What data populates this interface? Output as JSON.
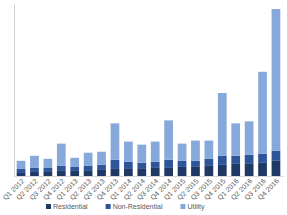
{
  "chart_data": {
    "type": "bar",
    "stacked": true,
    "tick_labels": "x",
    "legend": "bottom",
    "categories": [
      "Q1 2012",
      "Q2 2012",
      "Q3 2012",
      "Q4 2012",
      "Q1 2013",
      "Q2 2013",
      "Q3 2013",
      "Q4 2013",
      "Q1 2014",
      "Q2 2014",
      "Q3 2014",
      "Q4 2014",
      "Q1 2015",
      "Q2 2015",
      "Q3 2015",
      "Q4 2015",
      "Q1 2016",
      "Q2 2016",
      "Q3 2016",
      "Q4 2016"
    ],
    "series": [
      {
        "name": "Residential",
        "color": "#1f3864",
        "values": [
          3,
          4,
          4,
          5,
          5,
          5,
          6,
          7,
          7,
          7,
          8,
          8,
          9,
          9,
          10,
          11,
          12,
          12,
          13,
          15
        ]
      },
      {
        "name": "Non-Residential",
        "color": "#2e5597",
        "values": [
          4,
          4,
          4,
          5,
          4,
          5,
          5,
          9,
          7,
          6,
          6,
          8,
          6,
          6,
          7,
          9,
          8,
          9,
          9,
          10
        ]
      },
      {
        "name": "Utility",
        "color": "#86a8da",
        "values": [
          8,
          12,
          9,
          22,
          9,
          13,
          13,
          36,
          20,
          18,
          20,
          39,
          17,
          20,
          18,
          62,
          32,
          33,
          81,
          140
        ]
      }
    ],
    "ylim": [
      0,
      170
    ]
  }
}
